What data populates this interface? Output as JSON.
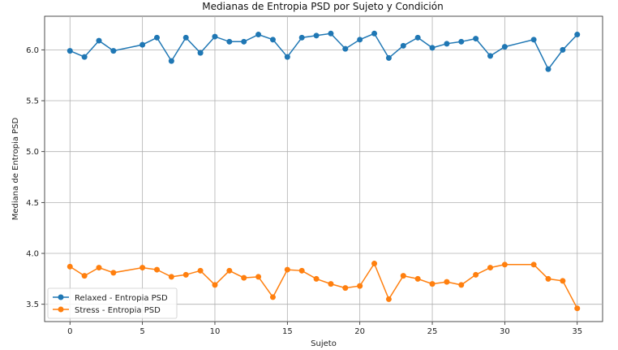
{
  "chart_data": {
    "type": "line",
    "title": "Medianas de Entropia PSD por Sujeto y Condición",
    "xlabel": "Sujeto",
    "ylabel": "Mediana de Entropia PSD",
    "xlim": [
      -1.75,
      36.75
    ],
    "ylim": [
      3.33,
      6.33
    ],
    "xticks": [
      0,
      5,
      10,
      15,
      20,
      25,
      30,
      35
    ],
    "yticks": [
      3.5,
      4.0,
      4.5,
      5.0,
      5.5,
      6.0
    ],
    "grid": true,
    "legend_position": "lower-left",
    "x": [
      0,
      1,
      2,
      3,
      5,
      6,
      7,
      8,
      9,
      10,
      11,
      12,
      13,
      14,
      15,
      16,
      17,
      18,
      19,
      20,
      21,
      22,
      23,
      24,
      25,
      26,
      27,
      28,
      29,
      30,
      32,
      33,
      34,
      35
    ],
    "series": [
      {
        "name": "Relaxed - Entropia PSD",
        "color": "#1f77b4",
        "values": [
          5.99,
          5.93,
          6.09,
          5.99,
          6.05,
          6.12,
          5.89,
          6.12,
          5.97,
          6.13,
          6.08,
          6.08,
          6.15,
          6.1,
          5.93,
          6.12,
          6.14,
          6.16,
          6.01,
          6.1,
          6.16,
          5.92,
          6.04,
          6.12,
          6.02,
          6.06,
          6.08,
          6.11,
          5.94,
          6.03,
          6.1,
          5.81,
          6.0,
          6.15
        ]
      },
      {
        "name": "Stress - Entropia PSD",
        "color": "#ff7f0e",
        "values": [
          3.87,
          3.78,
          3.86,
          3.81,
          3.86,
          3.84,
          3.77,
          3.79,
          3.83,
          3.69,
          3.83,
          3.76,
          3.77,
          3.57,
          3.84,
          3.83,
          3.75,
          3.7,
          3.66,
          3.68,
          3.9,
          3.55,
          3.78,
          3.75,
          3.7,
          3.72,
          3.69,
          3.79,
          3.86,
          3.89,
          3.89,
          3.75,
          3.73,
          3.46
        ]
      }
    ]
  }
}
